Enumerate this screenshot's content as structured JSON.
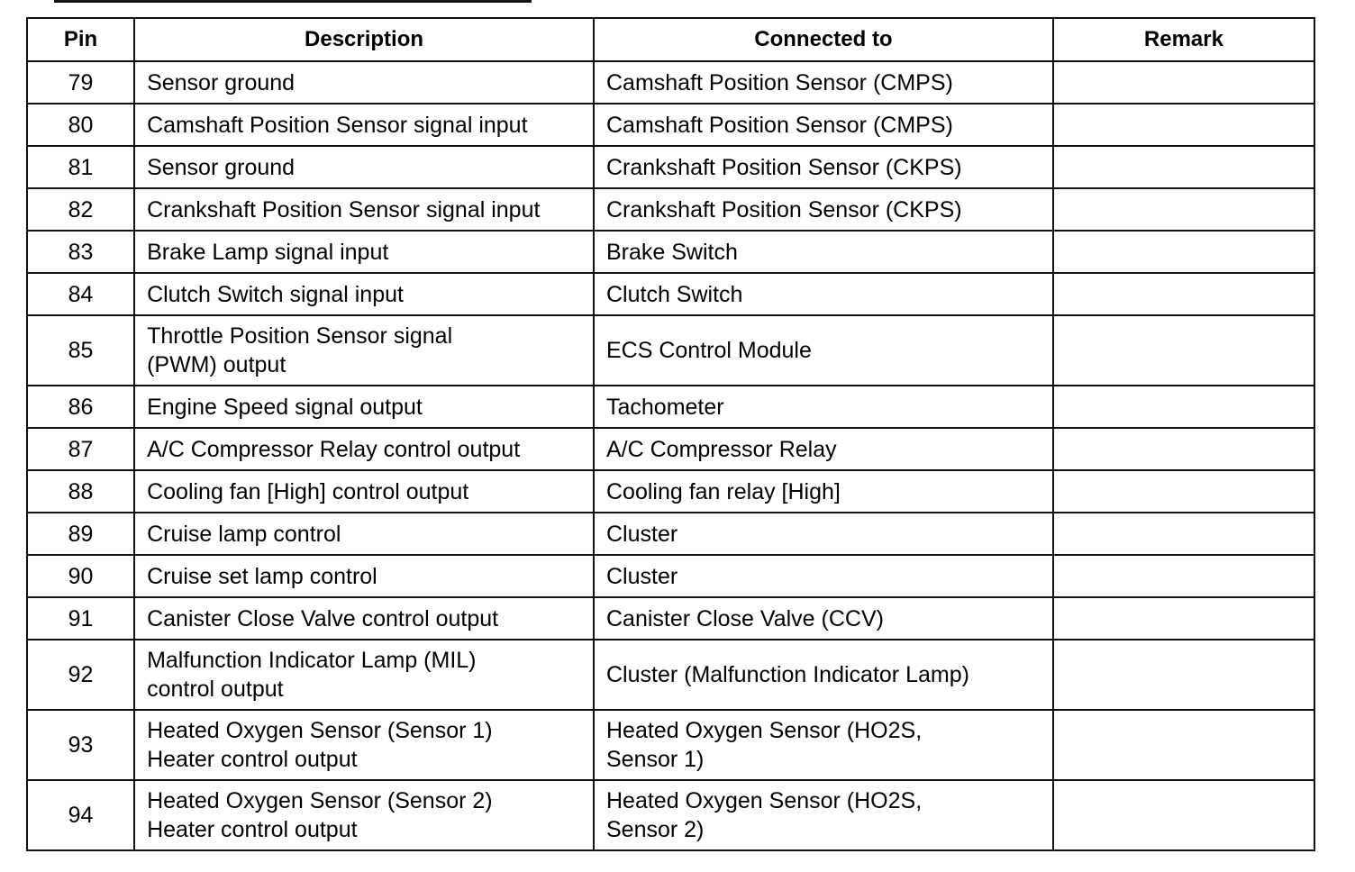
{
  "table": {
    "headers": [
      "Pin",
      "Description",
      "Connected to",
      "Remark"
    ],
    "rows": [
      {
        "pin": "79",
        "description": "Sensor ground",
        "connected_to": "Camshaft Position Sensor (CMPS)",
        "remark": ""
      },
      {
        "pin": "80",
        "description": "Camshaft Position Sensor signal input",
        "connected_to": "Camshaft Position Sensor (CMPS)",
        "remark": ""
      },
      {
        "pin": "81",
        "description": "Sensor ground",
        "connected_to": "Crankshaft Position Sensor (CKPS)",
        "remark": ""
      },
      {
        "pin": "82",
        "description": "Crankshaft Position Sensor signal input",
        "connected_to": "Crankshaft Position Sensor (CKPS)",
        "remark": ""
      },
      {
        "pin": "83",
        "description": "Brake Lamp signal input",
        "connected_to": "Brake Switch",
        "remark": ""
      },
      {
        "pin": "84",
        "description": "Clutch Switch signal input",
        "connected_to": "Clutch Switch",
        "remark": ""
      },
      {
        "pin": "85",
        "description": "Throttle Position Sensor signal\n(PWM) output",
        "connected_to": "ECS Control Module",
        "remark": ""
      },
      {
        "pin": "86",
        "description": "Engine Speed signal output",
        "connected_to": "Tachometer",
        "remark": ""
      },
      {
        "pin": "87",
        "description": "A/C Compressor Relay control output",
        "connected_to": "A/C Compressor Relay",
        "remark": ""
      },
      {
        "pin": "88",
        "description": "Cooling fan [High] control output",
        "connected_to": "Cooling fan relay [High]",
        "remark": ""
      },
      {
        "pin": "89",
        "description": "Cruise lamp control",
        "connected_to": "Cluster",
        "remark": ""
      },
      {
        "pin": "90",
        "description": "Cruise set lamp control",
        "connected_to": "Cluster",
        "remark": ""
      },
      {
        "pin": "91",
        "description": "Canister Close Valve control output",
        "connected_to": "Canister Close Valve (CCV)",
        "remark": ""
      },
      {
        "pin": "92",
        "description": "Malfunction Indicator Lamp (MIL)\ncontrol output",
        "connected_to": "Cluster (Malfunction Indicator Lamp)",
        "remark": ""
      },
      {
        "pin": "93",
        "description": "Heated Oxygen Sensor (Sensor 1)\nHeater control output",
        "connected_to": "Heated Oxygen Sensor (HO2S,\nSensor 1)",
        "remark": ""
      },
      {
        "pin": "94",
        "description": "Heated Oxygen Sensor (Sensor 2)\nHeater control output",
        "connected_to": "Heated Oxygen Sensor (HO2S,\nSensor 2)",
        "remark": ""
      }
    ]
  }
}
